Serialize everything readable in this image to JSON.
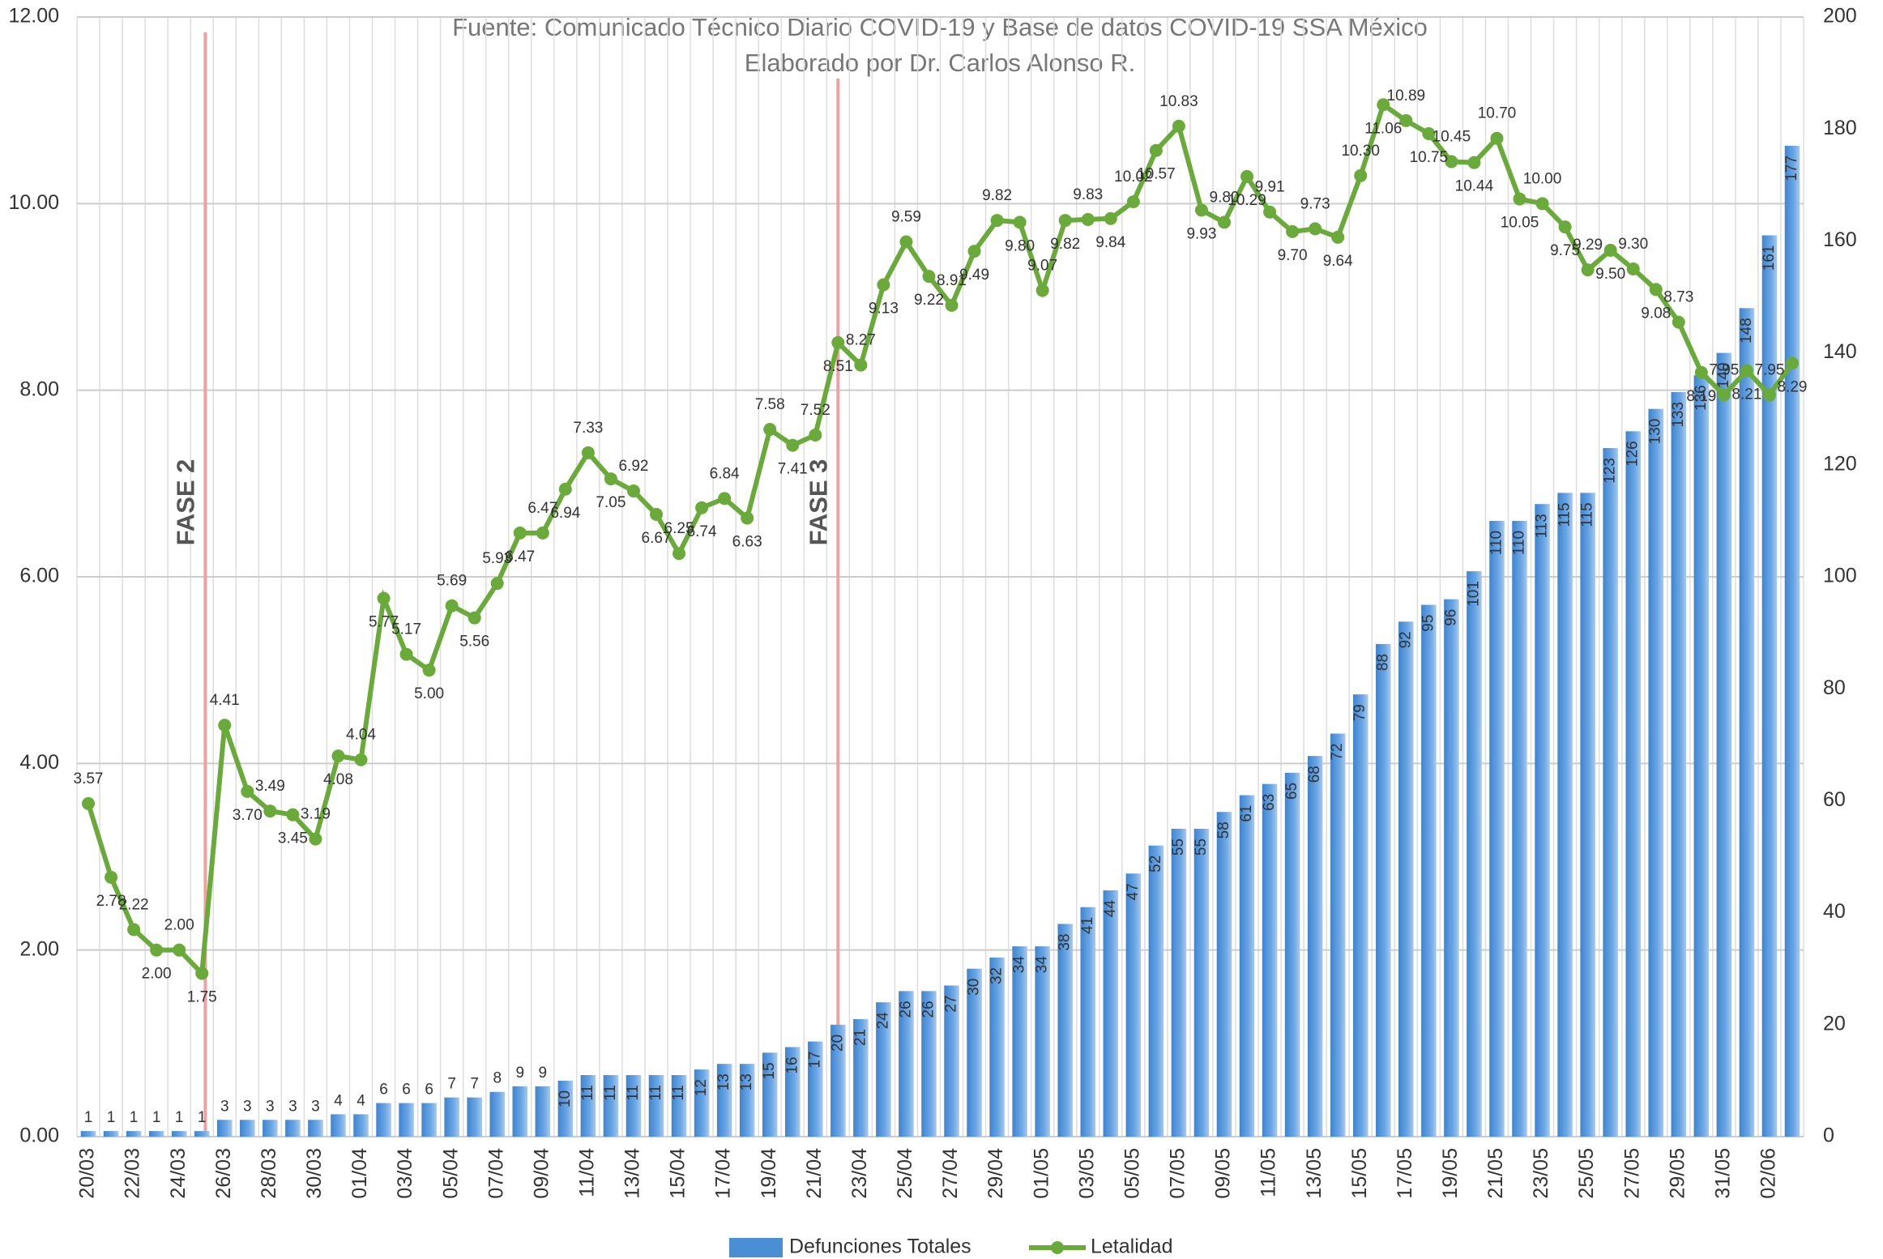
{
  "chart_data": {
    "type": "bar",
    "subtitle": [
      "Fuente: Comunicado Técnico Diario COVID-19 y Base de datos COVID-19 SSA México",
      "Elaborado por Dr. Carlos Alonso R."
    ],
    "annotations": [
      "FASE 2",
      "FASE 3"
    ],
    "categories": [
      "20/03",
      null,
      "22/03",
      null,
      "24/03",
      null,
      "26/03",
      null,
      "28/03",
      null,
      "30/03",
      null,
      "01/04",
      null,
      "03/04",
      null,
      "05/04",
      null,
      "07/04",
      null,
      "09/04",
      null,
      "11/04",
      null,
      "13/04",
      null,
      "15/04",
      null,
      "17/04",
      null,
      "19/04",
      null,
      "21/04",
      null,
      "23/04",
      null,
      "25/04",
      null,
      "27/04",
      null,
      "29/04",
      null,
      "01/05",
      null,
      "03/05",
      null,
      "05/05",
      null,
      "07/05",
      null,
      "09/05",
      null,
      "11/05",
      null,
      "13/05",
      null,
      "15/05",
      null,
      "17/05",
      null,
      "19/05",
      null,
      "21/05",
      null,
      "23/05",
      null,
      "25/05",
      null,
      "27/05",
      null,
      "29/05",
      null,
      "31/05",
      null,
      "02/06",
      null
    ],
    "series": [
      {
        "name": "Defunciones Totales",
        "color": "#4a8fd6",
        "axis": "y2",
        "type": "bar",
        "values": [
          1,
          1,
          1,
          1,
          1,
          1,
          3,
          3,
          3,
          3,
          3,
          4,
          4,
          6,
          6,
          6,
          7,
          7,
          8,
          9,
          9,
          10,
          11,
          11,
          11,
          11,
          11,
          12,
          13,
          13,
          15,
          16,
          17,
          20,
          21,
          24,
          26,
          26,
          27,
          30,
          32,
          34,
          34,
          38,
          41,
          44,
          47,
          52,
          55,
          55,
          58,
          61,
          63,
          65,
          68,
          72,
          79,
          88,
          92,
          95,
          96,
          101,
          110,
          110,
          113,
          115,
          115,
          123,
          126,
          130,
          133,
          136,
          140,
          148,
          161,
          177
        ]
      },
      {
        "name": "Letalidad",
        "color": "#6aaa3a",
        "type": "line",
        "values": [
          3.57,
          2.78,
          2.22,
          2.0,
          2.0,
          1.75,
          4.41,
          3.7,
          3.49,
          3.45,
          3.19,
          4.08,
          4.04,
          5.77,
          5.17,
          5.0,
          5.69,
          5.56,
          5.93,
          6.47,
          6.47,
          6.94,
          7.33,
          7.05,
          6.92,
          6.67,
          6.25,
          6.74,
          6.84,
          6.63,
          7.58,
          7.41,
          7.52,
          8.51,
          8.27,
          9.13,
          9.59,
          9.22,
          8.91,
          9.49,
          9.82,
          9.8,
          9.07,
          9.82,
          9.83,
          9.84,
          10.02,
          10.57,
          10.83,
          9.93,
          9.8,
          10.29,
          9.91,
          9.7,
          9.73,
          9.64,
          10.3,
          11.06,
          10.89,
          10.75,
          10.45,
          10.44,
          10.7,
          10.05,
          10.0,
          9.75,
          9.29,
          9.5,
          9.3,
          9.08,
          8.73,
          8.19,
          7.95,
          8.21,
          7.95,
          8.29
        ],
        "value_labels": [
          "3.57",
          "2.78",
          "2.22",
          "2.00",
          "2.00",
          "1.75",
          "4.41",
          "3.70",
          "3.49",
          "3.45",
          "3.19",
          "4.08",
          "4.04",
          "5.77",
          "5.17",
          "5.00",
          "5.69",
          "5.56",
          "5.93",
          "6.47",
          "6.47",
          "6.94",
          "7.33",
          "7.05",
          "6.92",
          "6.67",
          "6.25",
          "6.74",
          "6.84",
          "6.63",
          "7.58",
          "7.41",
          "7.52",
          "8.51",
          "8.27",
          "9.13",
          "9.59",
          "9.22",
          "8.91",
          "9.49",
          "9.82",
          "9.80",
          "9.07",
          "9.82",
          "9.83",
          "9.84",
          "10.02",
          "10.57",
          "10.83",
          "9.93",
          "9.80",
          "10.29",
          "9.91",
          "9.70",
          "9.73",
          "9.64",
          "10.30",
          "11.06",
          "10.89",
          "10.75",
          "10.45",
          "10.44",
          "10.70",
          "10.05",
          "10.00",
          "9.75",
          "9.29",
          "9.50",
          "9.30",
          "9.08",
          "8.73",
          "8.19",
          "7.95",
          "8.21",
          "7.95",
          "8.29"
        ]
      }
    ],
    "ylim": [
      0,
      12
    ],
    "yticks": [
      {
        "value": 0,
        "label": "0.00"
      },
      {
        "value": 2,
        "label": "2.00"
      },
      {
        "value": 4,
        "label": "4.00"
      },
      {
        "value": 6,
        "label": "6.00"
      },
      {
        "value": 8,
        "label": "8.00"
      },
      {
        "value": 10,
        "label": "10.00"
      },
      {
        "value": 12,
        "label": "12.00"
      }
    ],
    "y2lim": [
      0,
      200
    ],
    "y2ticks": [
      0,
      20,
      40,
      60,
      80,
      100,
      120,
      140,
      160,
      180,
      200
    ],
    "grid": true,
    "legend": "bottom"
  }
}
